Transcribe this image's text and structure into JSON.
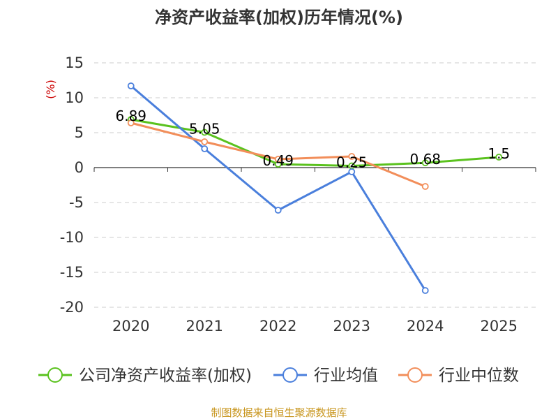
{
  "chart_data": {
    "type": "line",
    "title": "净资产收益率(加权)历年情况(%)",
    "ylabel": "(%)",
    "xlabel": "",
    "categories": [
      "2020",
      "2021",
      "2022",
      "2023",
      "2024",
      "2025"
    ],
    "ylim": [
      -20,
      15
    ],
    "yticks": [
      15,
      10,
      5,
      0,
      -5,
      -10,
      -15,
      -20
    ],
    "ytick_labels": [
      "15",
      "10",
      "5",
      "0",
      "-5",
      "-10",
      "-15",
      "-20"
    ],
    "grid": true,
    "legend_position": "bottom",
    "series": [
      {
        "name": "公司净资产收益率(加权)",
        "color": "#5ac21e",
        "values": [
          6.89,
          5.05,
          0.49,
          0.25,
          0.68,
          1.5
        ],
        "labels": [
          "6.89",
          "5.05",
          "0.49",
          "0.25",
          "0.68",
          "1.5"
        ]
      },
      {
        "name": "行业均值",
        "color": "#4a7fdc",
        "values": [
          11.7,
          2.7,
          -6.1,
          -0.6,
          -17.6,
          null
        ]
      },
      {
        "name": "行业中位数",
        "color": "#f28e5a",
        "values": [
          6.4,
          3.7,
          1.2,
          1.6,
          -2.7,
          null
        ]
      }
    ],
    "source": "制图数据来自恒生聚源数据库"
  }
}
